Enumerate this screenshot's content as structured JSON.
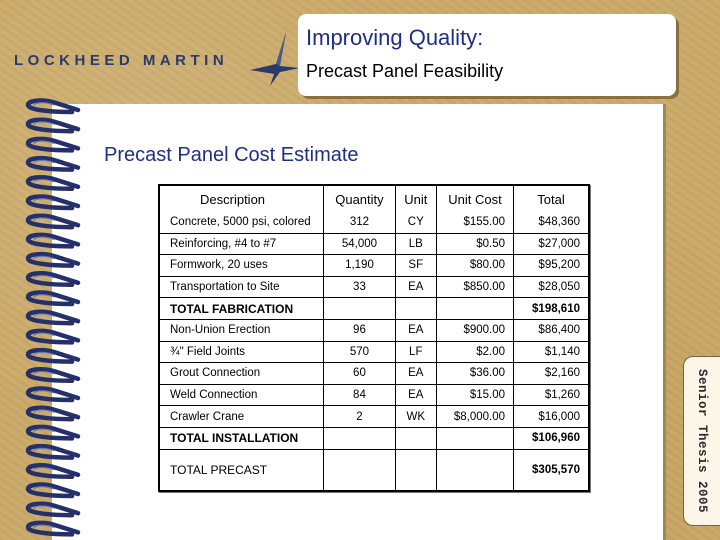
{
  "header": {
    "logo_text": "LOCKHEED MARTIN",
    "title_line1": "Improving Quality:",
    "title_line2": "Precast Panel Feasibility"
  },
  "section_title": "Precast Panel Cost Estimate",
  "side_tab": "Senior Thesis 2005",
  "table": {
    "columns": [
      "Description",
      "Quantity",
      "Unit",
      "Unit Cost",
      "Total"
    ],
    "fabrication_rows": [
      {
        "description": "Concrete, 5000 psi, colored",
        "quantity": "312",
        "unit": "CY",
        "unit_cost": "$155.00",
        "total": "$48,360"
      },
      {
        "description": "Reinforcing, #4 to #7",
        "quantity": "54,000",
        "unit": "LB",
        "unit_cost": "$0.50",
        "total": "$27,000"
      },
      {
        "description": "Formwork, 20 uses",
        "quantity": "1,190",
        "unit": "SF",
        "unit_cost": "$80.00",
        "total": "$95,200"
      },
      {
        "description": "Transportation to Site",
        "quantity": "33",
        "unit": "EA",
        "unit_cost": "$850.00",
        "total": "$28,050"
      }
    ],
    "total_fabrication": {
      "label": "TOTAL FABRICATION",
      "total": "$198,610"
    },
    "installation_rows": [
      {
        "description": "Non-Union Erection",
        "quantity": "96",
        "unit": "EA",
        "unit_cost": "$900.00",
        "total": "$86,400"
      },
      {
        "description": "¾\" Field Joints",
        "quantity": "570",
        "unit": "LF",
        "unit_cost": "$2.00",
        "total": "$1,140"
      },
      {
        "description": "Grout Connection",
        "quantity": "60",
        "unit": "EA",
        "unit_cost": "$36.00",
        "total": "$2,160"
      },
      {
        "description": "Weld Connection",
        "quantity": "84",
        "unit": "EA",
        "unit_cost": "$15.00",
        "total": "$1,260"
      },
      {
        "description": "Crawler Crane",
        "quantity": "2",
        "unit": "WK",
        "unit_cost": "$8,000.00",
        "total": "$16,000"
      }
    ],
    "total_installation": {
      "label": "TOTAL INSTALLATION",
      "total": "$106,960"
    },
    "total_precast": {
      "label": "TOTAL PRECAST",
      "total": "$305,570"
    }
  },
  "colors": {
    "title_blue": "#1f2f88",
    "logo_navy": "#2b3a6b",
    "background_tan": "#c9a968"
  }
}
